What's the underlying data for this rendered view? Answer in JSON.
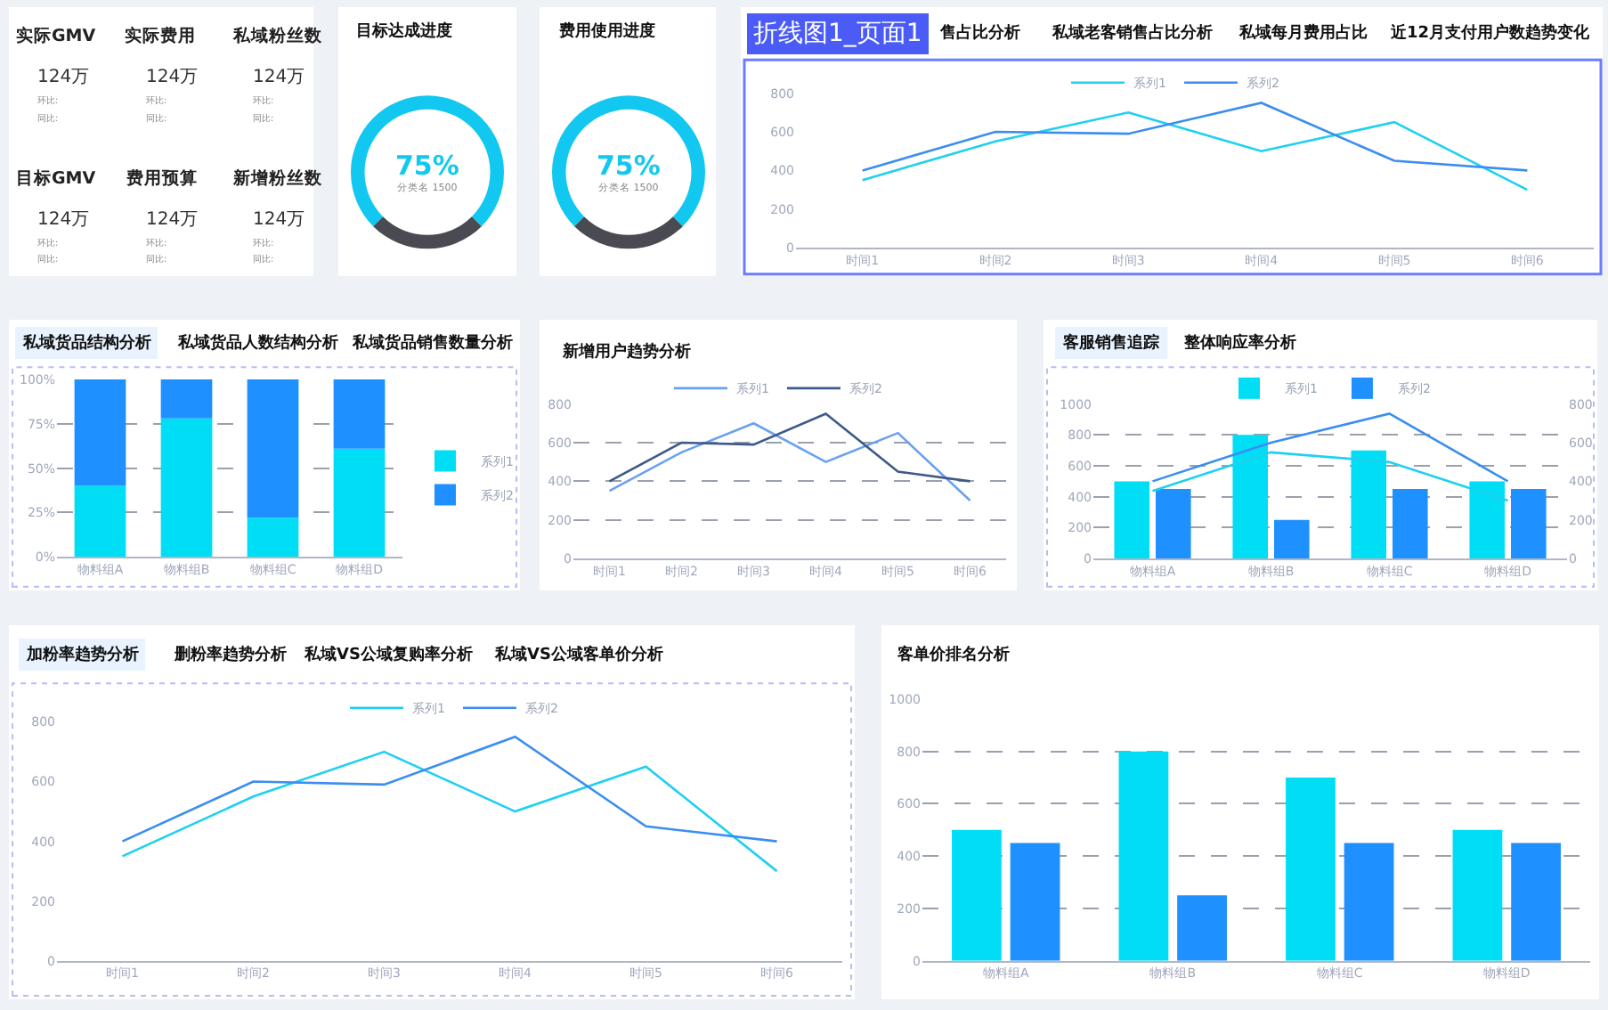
{
  "chart_data": [
    {
      "type": "other",
      "annotations": [
        "实际GMV",
        "124万",
        "环比:",
        "同比:",
        "实际费用",
        "124万",
        "环比:",
        "同比:",
        "私域粉丝数",
        "124万",
        "环比:",
        "同比:",
        "目标GMV",
        "124万",
        "环比:",
        "同比:",
        "费用预算",
        "124万",
        "环比:",
        "同比:",
        "新增粉丝数",
        "124万",
        "环比:",
        "同比:"
      ]
    },
    {
      "type": "donut",
      "title": "目标达成进度",
      "categories": [
        null,
        null
      ],
      "values": [
        75,
        25
      ],
      "colors": [
        "#12c8f0",
        "#4a4a52"
      ],
      "annotations": [
        "75%",
        "分类名 1500"
      ]
    },
    {
      "type": "donut",
      "title": "费用使用进度",
      "categories": [
        null,
        null
      ],
      "values": [
        75,
        25
      ],
      "colors": [
        "#12c8f0",
        "#4a4a52"
      ],
      "annotations": [
        "75%",
        "分类名 1500"
      ]
    },
    {
      "type": "line",
      "title": "折线图1_页面1",
      "annotations": [
        "售占比分析",
        "私域老客销售占比分析",
        "私域每月费用占比",
        "近12月支付用户数趋势变化"
      ],
      "categories": [
        "时间1",
        "时间2",
        "时间3",
        "时间4",
        "时间5",
        "时间6"
      ],
      "ylim": [
        0,
        800
      ],
      "yticks": [
        0,
        200,
        400,
        600,
        800
      ],
      "legend": "top",
      "series": [
        {
          "name": "系列1",
          "color": "#1fd0f0",
          "values": [
            350,
            550,
            700,
            500,
            650,
            300
          ]
        },
        {
          "name": "系列2",
          "color": "#3b8ef0",
          "values": [
            400,
            600,
            590,
            750,
            450,
            400
          ]
        }
      ]
    },
    {
      "type": "bar",
      "stacked": true,
      "title": "私域货品结构分析",
      "annotations": [
        "私域货品人数结构分析",
        "私域货品销售数量分析"
      ],
      "categories": [
        "物料组A",
        "物料组B",
        "物料组C",
        "物料组D"
      ],
      "ylim": [
        0,
        100
      ],
      "yticks": [
        {
          "value": 0,
          "label": "0%"
        },
        {
          "value": 25,
          "label": "25%"
        },
        {
          "value": 50,
          "label": "50%"
        },
        {
          "value": 75,
          "label": "75%"
        },
        {
          "value": 100,
          "label": "100%"
        }
      ],
      "grid": "y",
      "legend": "right",
      "series": [
        {
          "name": "系列1",
          "color": "#00def5",
          "values": [
            40,
            78,
            22,
            61
          ]
        },
        {
          "name": "系列2",
          "color": "#1e90ff",
          "values": [
            60,
            22,
            78,
            39
          ]
        }
      ]
    },
    {
      "type": "line",
      "title": "新增用户趋势分析",
      "categories": [
        "时间1",
        "时间2",
        "时间3",
        "时间4",
        "时间5",
        "时间6"
      ],
      "ylim": [
        0,
        800
      ],
      "yticks": [
        0,
        200,
        400,
        600,
        800
      ],
      "grid": "y",
      "legend": "top",
      "series": [
        {
          "name": "系列1",
          "color": "#6aa1f0",
          "values": [
            350,
            550,
            700,
            500,
            650,
            300
          ]
        },
        {
          "name": "系列2",
          "color": "#3d5a8a",
          "values": [
            400,
            600,
            590,
            750,
            450,
            400
          ]
        }
      ]
    },
    {
      "type": "bar",
      "title": "客服销售追踪",
      "annotations": [
        "整体响应率分析"
      ],
      "categories": [
        "物料组A",
        "物料组B",
        "物料组C",
        "物料组D"
      ],
      "ylim": [
        0,
        1000
      ],
      "yticks": [
        0,
        200,
        400,
        600,
        800,
        1000
      ],
      "y2lim": [
        0,
        800
      ],
      "y2ticks": [
        0,
        200,
        400,
        600,
        800
      ],
      "grid": "y",
      "legend": "top",
      "series": [
        {
          "name": "系列1",
          "color": "#00def5",
          "values": [
            500,
            800,
            700,
            500
          ]
        },
        {
          "name": "系列2",
          "color": "#1e90ff",
          "values": [
            450,
            250,
            450,
            450
          ]
        },
        {
          "type": "line",
          "axis": "y2",
          "color": "#1fd0f0",
          "values": [
            350,
            550,
            500,
            300
          ]
        },
        {
          "type": "line",
          "axis": "y2",
          "color": "#3b8ef0",
          "values": [
            400,
            600,
            750,
            400
          ]
        }
      ]
    },
    {
      "type": "line",
      "title": "加粉率趋势分析",
      "annotations": [
        "删粉率趋势分析",
        "私域VS公域复购率分析",
        "私域VS公域客单价分析"
      ],
      "categories": [
        "时间1",
        "时间2",
        "时间3",
        "时间4",
        "时间5",
        "时间6"
      ],
      "ylim": [
        0,
        800
      ],
      "yticks": [
        0,
        200,
        400,
        600,
        800
      ],
      "legend": "top",
      "series": [
        {
          "name": "系列1",
          "color": "#1fd0f0",
          "values": [
            350,
            550,
            700,
            500,
            650,
            300
          ]
        },
        {
          "name": "系列2",
          "color": "#3b8ef0",
          "values": [
            400,
            600,
            590,
            750,
            450,
            400
          ]
        }
      ]
    },
    {
      "type": "bar",
      "title": "客单价排名分析",
      "categories": [
        "物料组A",
        "物料组B",
        "物料组C",
        "物料组D"
      ],
      "ylim": [
        0,
        1000
      ],
      "yticks": [
        0,
        200,
        400,
        600,
        800,
        1000
      ],
      "grid": "y",
      "series": [
        {
          "color": "#00def5",
          "values": [
            500,
            800,
            700,
            500
          ]
        },
        {
          "color": "#1e90ff",
          "values": [
            450,
            250,
            450,
            450
          ]
        }
      ]
    }
  ]
}
